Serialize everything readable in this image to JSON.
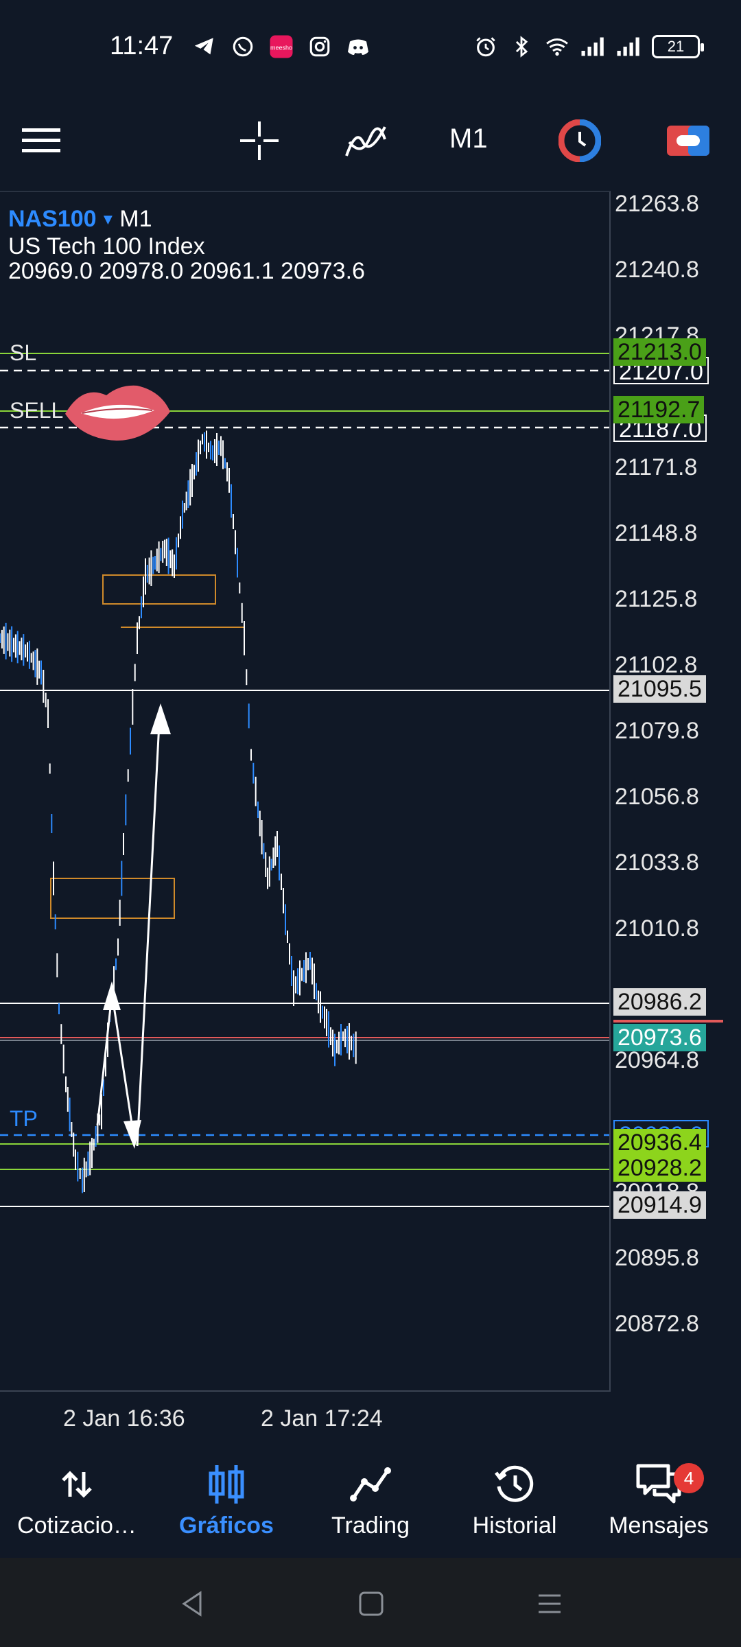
{
  "status_bar": {
    "time": "11:47",
    "battery": "21",
    "left_icons": [
      "telegram-icon",
      "whatsapp-icon",
      "meesho-icon",
      "instagram-icon",
      "discord-icon"
    ],
    "right_icons": [
      "alarm-icon",
      "bluetooth-icon",
      "wifi-icon",
      "signal-icon",
      "signal-icon"
    ]
  },
  "toolbar": {
    "timeframe": "M1",
    "icons": [
      "menu-icon",
      "crosshair-icon",
      "indicators-icon",
      "timeframe-selector",
      "clock-icon",
      "trade-toggle-icon"
    ]
  },
  "symbol": {
    "name": "NAS100",
    "timeframe": "M1",
    "description": "US Tech 100 Index",
    "ohlc": "20969.0 20978.0 20961.1 20973.6"
  },
  "price_ticks": [
    "21263.8",
    "21240.8",
    "21217.8",
    "21171.8",
    "21148.8",
    "21125.8",
    "21102.8",
    "21079.8",
    "21056.8",
    "21033.8",
    "21010.8",
    "20964.8",
    "20918.8",
    "20895.8",
    "20872.8"
  ],
  "price_tags": {
    "sl": "21213.0",
    "sl_order": "21207.0",
    "sell": "21192.7",
    "sell_order": "21187.0",
    "hline1": "21095.5",
    "hline2": "20986.2",
    "current": "20973.6",
    "tp_order": "20939.0",
    "tp1": "20936.4",
    "tp2": "20928.2",
    "hline3": "20914.9"
  },
  "line_labels": {
    "sl": "SL",
    "sell": "SELL",
    "tp": "TP"
  },
  "time_ticks": [
    "2 Jan 16:36",
    "2 Jan 17:24"
  ],
  "bottom_nav": [
    {
      "label": "Cotizacio…",
      "icon": "quotes-icon",
      "active": false
    },
    {
      "label": "Gráficos",
      "icon": "charts-icon",
      "active": true
    },
    {
      "label": "Trading",
      "icon": "trading-icon",
      "active": false
    },
    {
      "label": "Historial",
      "icon": "history-icon",
      "active": false
    },
    {
      "label": "Mensajes",
      "icon": "messages-icon",
      "active": false,
      "badge": "4"
    }
  ],
  "colors": {
    "background": "#101826",
    "accent_blue": "#3a8fff",
    "green_line": "#8bd63a",
    "price_tag_gray": "#d9d9d9",
    "current_price": "#26a69a",
    "sell_tag": "#4aa018",
    "tp_tag": "#8dd41c",
    "red_line": "#e35a5a",
    "box_orange": "#d08a2a",
    "candle_blue": "#2d8bff",
    "candle_white": "#ffffff",
    "badge_red": "#e53935"
  }
}
